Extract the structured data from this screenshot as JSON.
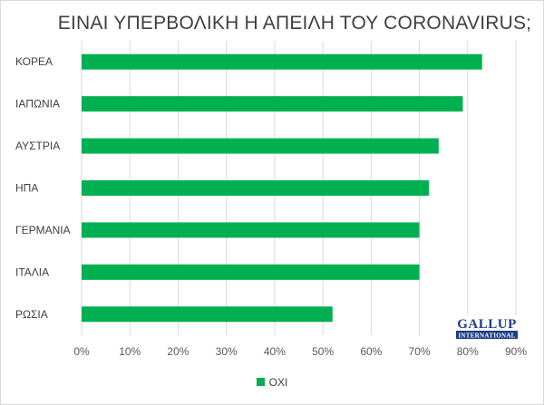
{
  "chart_data": {
    "type": "bar",
    "orientation": "horizontal",
    "title": "ΕΙΝΑΙ ΥΠΕΡΒΟΛΙΚΗ Η ΑΠΕΙΛΗ ΤΟΥ CORONAVIRUS;",
    "categories": [
      "ΚΟΡΕΑ",
      "ΙΑΠΩΝΙΑ",
      "ΑΥΣΤΡΙΑ",
      "ΗΠΑ",
      "ΓΕΡΜΑΝΙΑ",
      "ΙΤΑΛΙΑ",
      "ΡΩΣΙΑ"
    ],
    "series": [
      {
        "name": "ΟΧΙ",
        "values": [
          83,
          79,
          74,
          72,
          70,
          70,
          52
        ],
        "color": "#00b050"
      }
    ],
    "xlim": [
      0,
      90
    ],
    "x_ticks": [
      "0%",
      "10%",
      "20%",
      "30%",
      "40%",
      "50%",
      "60%",
      "70%",
      "80%",
      "90%"
    ],
    "grid": "vertical",
    "legend_position": "bottom",
    "grid_color": "#d9d9d9"
  },
  "logo": {
    "top_text": "GALLUP",
    "bottom_text": "INTERNATIONAL",
    "color": "#1f3c88"
  }
}
